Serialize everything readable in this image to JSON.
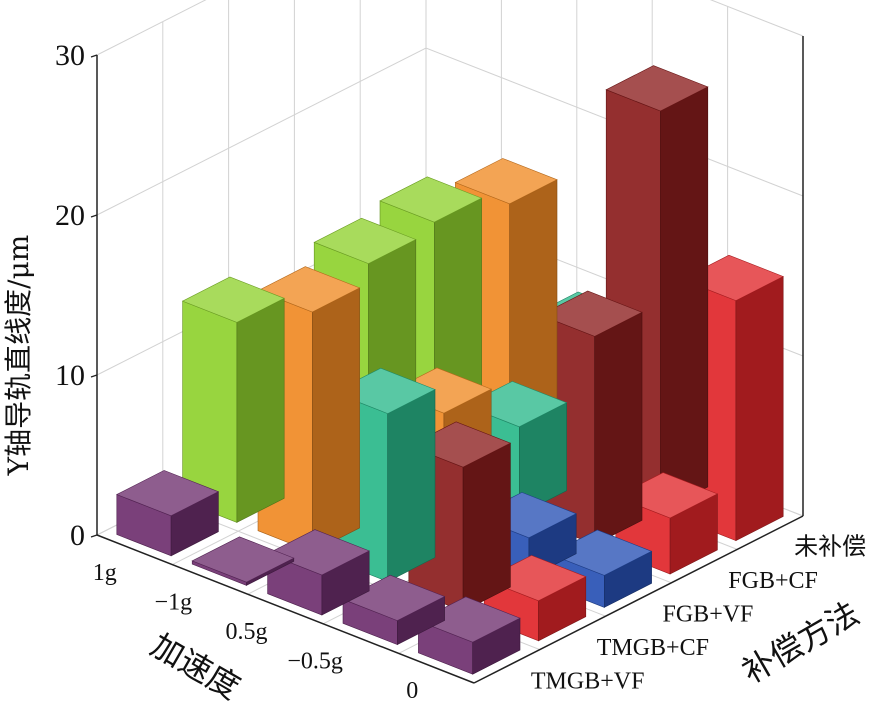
{
  "chart_data": {
    "type": "bar3d",
    "zlabel": "Y轴导轨直线度/μm",
    "xlabel": "加速度",
    "ylabel": "补偿方法",
    "zlim": [
      0,
      30
    ],
    "zticks": [
      "0",
      "10",
      "20",
      "30"
    ],
    "acceleration": [
      "1g",
      "−1g",
      "0.5g",
      "−0.5g",
      "0"
    ],
    "methods": [
      "TMGB+VF",
      "TMGB+CF",
      "FGB+VF",
      "FGB+CF",
      "未补偿"
    ],
    "method_colors": {
      "TMGB+VF": "#6e2f6e",
      "TMGB+CF": "#2ab88a",
      "FGB+VF": "#2851b4",
      "FGB+CF": "#8fd12e",
      "未补偿": "#8b1d1d"
    },
    "accel_colors": {
      "1g": "#8fd12e",
      "−1g": "#f08a24",
      "0.5g": "#2ab88a",
      "−0.5g": "#8b1d1d",
      "0": "#e0262a"
    },
    "bars": [
      {
        "accel": "1g",
        "method": "TMGB+VF",
        "value": 2.5
      },
      {
        "accel": "1g",
        "method": "TMGB+CF",
        "value": 12.5
      },
      {
        "accel": "1g",
        "method": "FGB+VF",
        "value": 9.0
      },
      {
        "accel": "1g",
        "method": "FGB+CF",
        "value": 12.0
      },
      {
        "accel": "1g",
        "method": "未补偿",
        "value": 12.5
      },
      {
        "accel": "−1g",
        "method": "TMGB+VF",
        "value": 0.2
      },
      {
        "accel": "−1g",
        "method": "TMGB+CF",
        "value": 15.0
      },
      {
        "accel": "−1g",
        "method": "FGB+VF",
        "value": 2.5
      },
      {
        "accel": "−1g",
        "method": "FGB+CF",
        "value": 4.5
      },
      {
        "accel": "−1g",
        "method": "未补偿",
        "value": 15.5
      },
      {
        "accel": "0.5g",
        "method": "TMGB+VF",
        "value": 2.5
      },
      {
        "accel": "0.5g",
        "method": "TMGB+CF",
        "value": 10.5
      },
      {
        "accel": "0.5g",
        "method": "FGB+VF",
        "value": 4.0
      },
      {
        "accel": "0.5g",
        "method": "FGB+CF",
        "value": 5.5
      },
      {
        "accel": "0.5g",
        "method": "未补偿",
        "value": 9.0
      },
      {
        "accel": "−0.5g",
        "method": "TMGB+VF",
        "value": 1.5
      },
      {
        "accel": "−0.5g",
        "method": "TMGB+CF",
        "value": 9.0
      },
      {
        "accel": "−0.5g",
        "method": "FGB+VF",
        "value": 2.5
      },
      {
        "accel": "−0.5g",
        "method": "FGB+CF",
        "value": 13.0
      },
      {
        "accel": "−0.5g",
        "method": "未补偿",
        "value": 25.0
      },
      {
        "accel": "0",
        "method": "TMGB+VF",
        "value": 2.0
      },
      {
        "accel": "0",
        "method": "TMGB+CF",
        "value": 2.5
      },
      {
        "accel": "0",
        "method": "FGB+VF",
        "value": 2.0
      },
      {
        "accel": "0",
        "method": "FGB+CF",
        "value": 3.5
      },
      {
        "accel": "0",
        "method": "未补偿",
        "value": 15.0
      }
    ]
  }
}
